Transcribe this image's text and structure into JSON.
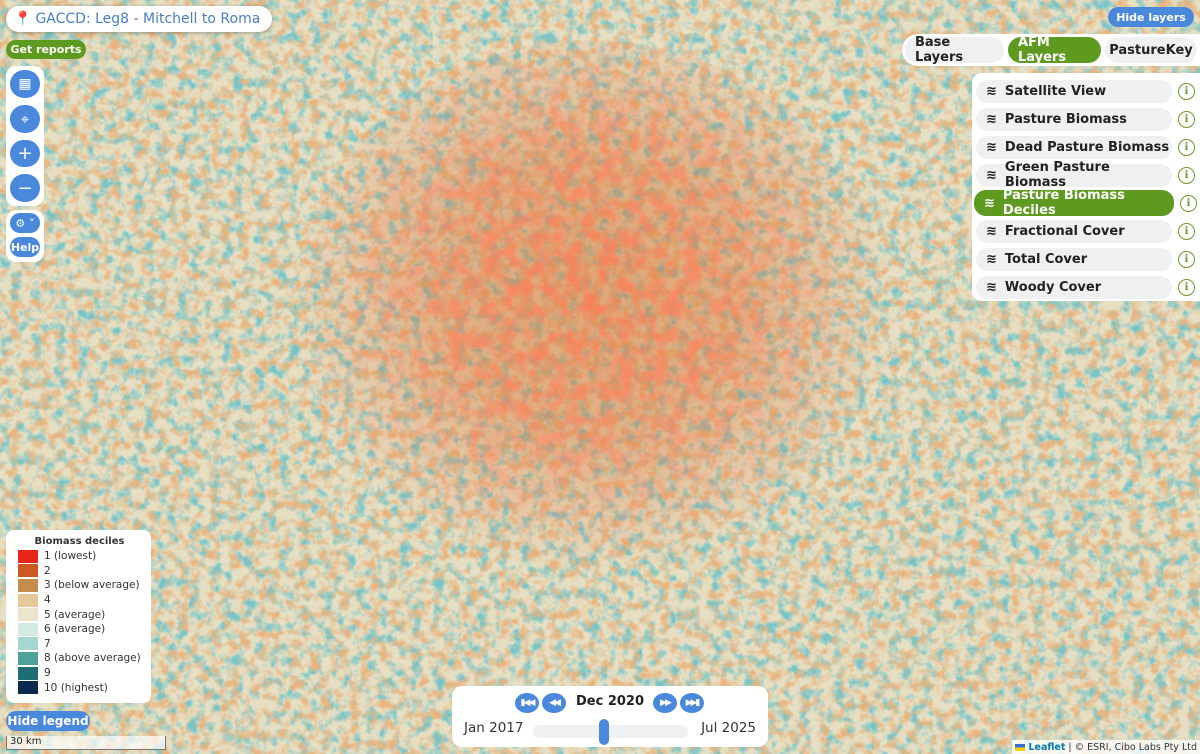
{
  "header": {
    "title": "GACCD: Leg8 - Mitchell to Roma",
    "get_reports": "Get reports"
  },
  "controls": {
    "settings_icon": "gear-icon",
    "help": "Help"
  },
  "layer_panel": {
    "hide_layers": "Hide layers",
    "tabs": [
      {
        "label": "Base Layers",
        "active": false
      },
      {
        "label": "AFM Layers",
        "active": true
      },
      {
        "label": "PastureKey",
        "active": false
      }
    ],
    "items": [
      {
        "label": "Satellite View",
        "active": false
      },
      {
        "label": "Pasture Biomass",
        "active": false
      },
      {
        "label": "Dead Pasture Biomass",
        "active": false
      },
      {
        "label": "Green Pasture Biomass",
        "active": false
      },
      {
        "label": "Pasture Biomass Deciles",
        "active": true
      },
      {
        "label": "Fractional Cover",
        "active": false
      },
      {
        "label": "Total Cover",
        "active": false
      },
      {
        "label": "Woody Cover",
        "active": false
      }
    ]
  },
  "legend": {
    "title": "Biomass deciles",
    "hide_label": "Hide legend",
    "items": [
      {
        "label": "1 (lowest)",
        "color": "#e8251c"
      },
      {
        "label": "2",
        "color": "#cd5a22"
      },
      {
        "label": "3 (below average)",
        "color": "#c58c4e"
      },
      {
        "label": "4",
        "color": "#e8c898"
      },
      {
        "label": "5 (average)",
        "color": "#ebe6cb"
      },
      {
        "label": "6 (average)",
        "color": "#d4ebe1"
      },
      {
        "label": "7",
        "color": "#a6d6d2"
      },
      {
        "label": "8 (above average)",
        "color": "#4ea29a"
      },
      {
        "label": "9",
        "color": "#1d6d72"
      },
      {
        "label": "10 (highest)",
        "color": "#0b2a52"
      }
    ]
  },
  "scale": "30 km",
  "timeline": {
    "current": "Dec 2020",
    "start": "Jan 2017",
    "end": "Jul 2025",
    "position": 0.46
  },
  "attribution": {
    "leaflet": "Leaflet",
    "rest": "| © ESRI, Cibo Labs Pty Ltd"
  },
  "colors": {
    "accent_blue": "#4a88dc",
    "accent_green": "#5d9a1f"
  }
}
